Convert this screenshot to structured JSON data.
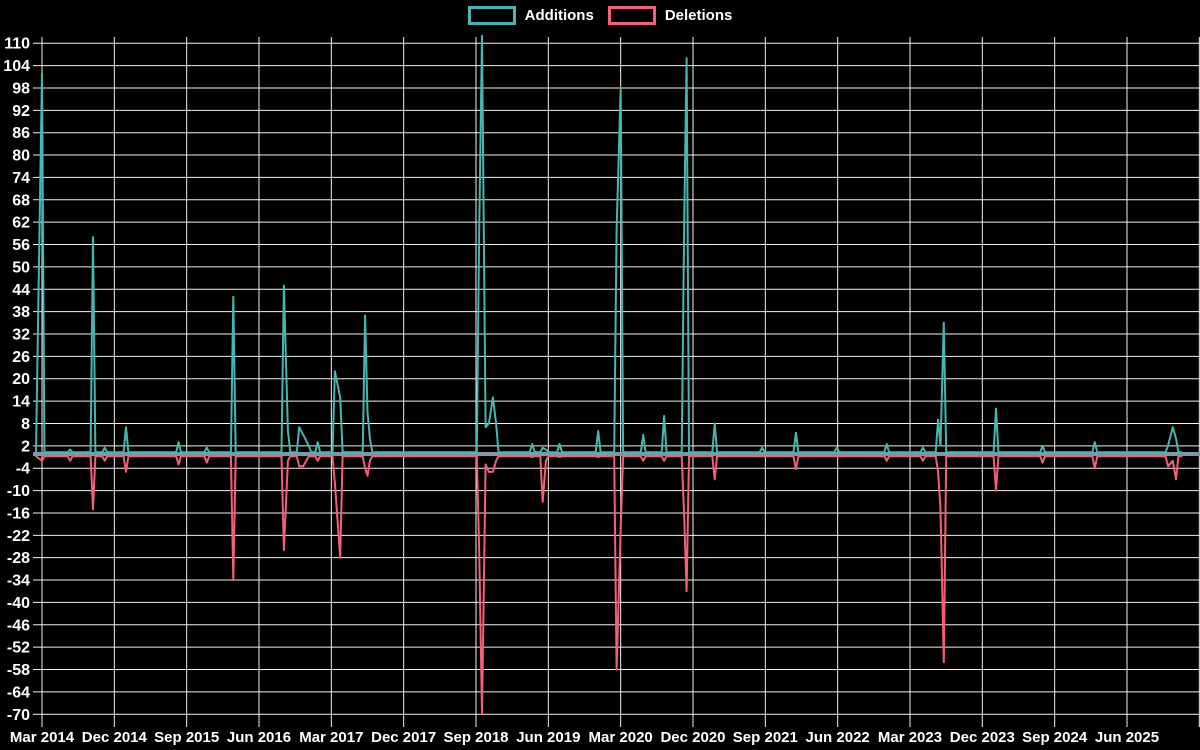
{
  "chart_data": {
    "type": "line",
    "title": "",
    "background": "#000000",
    "grid": {
      "on": true,
      "color": "#f2f2f2"
    },
    "zero_line_color": "#7f98a5",
    "text_color": "#ffffff",
    "legend": {
      "position": "top-center",
      "entries": [
        {
          "label": "Additions",
          "color": "#45b7b0"
        },
        {
          "label": "Deletions",
          "color": "#f55f79"
        }
      ]
    },
    "y_axis": {
      "min": -70,
      "max": 110,
      "tick_step": 6,
      "ticks": [
        110,
        104,
        98,
        92,
        86,
        80,
        74,
        68,
        62,
        56,
        50,
        44,
        38,
        32,
        26,
        20,
        14,
        8,
        2,
        -4,
        -10,
        -16,
        -22,
        -28,
        -34,
        -40,
        -46,
        -52,
        -58,
        -64,
        -70
      ]
    },
    "x_axis": {
      "t_unit": "months since Mar 2014",
      "label_spacing_months": 9,
      "gridline_count": 17,
      "labels": [
        "Mar 2014",
        "Dec 2014",
        "Sep 2015",
        "Jun 2016",
        "Mar 2017",
        "Dec 2017",
        "Sep 2018",
        "Jun 2019",
        "Mar 2020",
        "Dec 2020",
        "Sep 2021",
        "Jun 2022",
        "Mar 2023",
        "Dec 2023",
        "Sep 2024",
        "Jun 2025"
      ]
    },
    "series": [
      {
        "name": "Additions",
        "color": "#45b7b0",
        "rest": 0.3,
        "points": [
          [
            0.0,
            102
          ],
          [
            3.5,
            1
          ],
          [
            6.35,
            58
          ],
          [
            7.8,
            1.5
          ],
          [
            10.45,
            7
          ],
          [
            17.0,
            3
          ],
          [
            20.5,
            1.5
          ],
          [
            23.8,
            42
          ],
          [
            30.1,
            45
          ],
          [
            30.6,
            6
          ],
          [
            32.0,
            7
          ],
          [
            32.5,
            5
          ],
          [
            33.2,
            2
          ],
          [
            34.3,
            3
          ],
          [
            36.45,
            22
          ],
          [
            37.1,
            15
          ],
          [
            40.2,
            37
          ],
          [
            40.5,
            11
          ],
          [
            40.8,
            4
          ],
          [
            54.4,
            60
          ],
          [
            54.75,
            112
          ],
          [
            55.2,
            7
          ],
          [
            55.6,
            8
          ],
          [
            56.1,
            15
          ],
          [
            56.5,
            8
          ],
          [
            61.0,
            2.5
          ],
          [
            62.3,
            1.5
          ],
          [
            62.7,
            1
          ],
          [
            64.4,
            2.5
          ],
          [
            69.2,
            6
          ],
          [
            71.5,
            60
          ],
          [
            72.0,
            98
          ],
          [
            74.8,
            5
          ],
          [
            77.4,
            10
          ],
          [
            79.9,
            62
          ],
          [
            80.2,
            106
          ],
          [
            83.7,
            8
          ],
          [
            89.6,
            1.5
          ],
          [
            93.8,
            5.5
          ],
          [
            98.9,
            1.5
          ],
          [
            105.1,
            2.5
          ],
          [
            109.6,
            1.5
          ],
          [
            111.5,
            9
          ],
          [
            111.8,
            2
          ],
          [
            112.2,
            35
          ],
          [
            118.7,
            12
          ],
          [
            124.5,
            2
          ],
          [
            131.0,
            3
          ],
          [
            140.1,
            2
          ],
          [
            140.7,
            7
          ],
          [
            141.1,
            4
          ]
        ]
      },
      {
        "name": "Deletions",
        "color": "#f55f79",
        "rest": -0.8,
        "points": [
          [
            0.0,
            -2
          ],
          [
            3.5,
            -2
          ],
          [
            6.35,
            -15
          ],
          [
            7.8,
            -2
          ],
          [
            10.45,
            -5
          ],
          [
            17.0,
            -3
          ],
          [
            20.5,
            -2.5
          ],
          [
            23.8,
            -34
          ],
          [
            30.1,
            -26
          ],
          [
            30.6,
            -2
          ],
          [
            32.0,
            -3.5
          ],
          [
            32.5,
            -3.5
          ],
          [
            33.2,
            -0.8
          ],
          [
            34.3,
            -2
          ],
          [
            36.45,
            -8
          ],
          [
            37.1,
            -28
          ],
          [
            40.2,
            -4
          ],
          [
            40.5,
            -6
          ],
          [
            40.8,
            -2
          ],
          [
            54.4,
            -26
          ],
          [
            54.75,
            -70
          ],
          [
            55.2,
            -3
          ],
          [
            55.6,
            -5
          ],
          [
            56.1,
            -5
          ],
          [
            56.5,
            -2
          ],
          [
            61.0,
            -1
          ],
          [
            62.3,
            -13
          ],
          [
            62.7,
            -2
          ],
          [
            64.4,
            -1
          ],
          [
            69.2,
            -1
          ],
          [
            71.5,
            -58
          ],
          [
            72.0,
            -20
          ],
          [
            74.8,
            -2
          ],
          [
            77.4,
            -2
          ],
          [
            79.9,
            -17
          ],
          [
            80.2,
            -37
          ],
          [
            83.7,
            -7
          ],
          [
            89.6,
            -0.8
          ],
          [
            93.8,
            -4.2
          ],
          [
            98.9,
            -0.8
          ],
          [
            105.1,
            -2
          ],
          [
            109.6,
            -2
          ],
          [
            111.5,
            -5
          ],
          [
            111.8,
            -15
          ],
          [
            112.2,
            -56
          ],
          [
            118.7,
            -10
          ],
          [
            124.5,
            -2.5
          ],
          [
            131.0,
            -4
          ],
          [
            140.1,
            -3.5
          ],
          [
            140.7,
            -2
          ],
          [
            141.1,
            -7
          ]
        ]
      }
    ]
  }
}
